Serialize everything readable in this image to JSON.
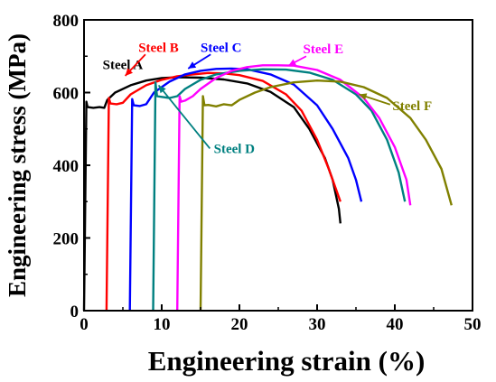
{
  "chart_data": {
    "type": "line",
    "xlabel": "Engineering strain (%)",
    "ylabel": "Engineering stress (MPa)",
    "xlim": [
      0,
      50
    ],
    "ylim": [
      0,
      800
    ],
    "xticks": [
      0,
      10,
      20,
      30,
      40,
      50
    ],
    "yticks": [
      0,
      200,
      400,
      600,
      800
    ],
    "legend": "inline labels",
    "series": [
      {
        "name": "Steel A",
        "color": "#000000",
        "label_anchor": [
          2.4,
          665
        ],
        "points": [
          [
            0,
            0
          ],
          [
            0.3,
            575
          ],
          [
            0.45,
            560
          ],
          [
            1.2,
            558
          ],
          [
            2.0,
            560
          ],
          [
            2.6,
            558
          ],
          [
            3.0,
            580
          ],
          [
            4.0,
            600
          ],
          [
            6.0,
            620
          ],
          [
            8.0,
            633
          ],
          [
            10.0,
            640
          ],
          [
            12.0,
            642
          ],
          [
            15.0,
            641
          ],
          [
            18.0,
            636
          ],
          [
            21.0,
            625
          ],
          [
            24.0,
            602
          ],
          [
            27.0,
            560
          ],
          [
            29.0,
            500
          ],
          [
            31.0,
            420
          ],
          [
            32.0,
            360
          ],
          [
            32.8,
            280
          ],
          [
            33.0,
            240
          ]
        ]
      },
      {
        "name": "Steel B",
        "color": "#ff0000",
        "label_anchor": [
          7.0,
          712
        ],
        "arrow_from": [
          7.9,
          705
        ],
        "arrow_to": [
          5.3,
          646
        ],
        "points": [
          [
            2.9,
            0
          ],
          [
            3.2,
            585
          ],
          [
            3.4,
            570
          ],
          [
            4.2,
            568
          ],
          [
            5.0,
            572
          ],
          [
            6.0,
            595
          ],
          [
            8.0,
            620
          ],
          [
            10.0,
            635
          ],
          [
            12.0,
            645
          ],
          [
            14.0,
            650
          ],
          [
            16.0,
            654
          ],
          [
            18.0,
            653
          ],
          [
            20.0,
            648
          ],
          [
            23.0,
            632
          ],
          [
            26.0,
            595
          ],
          [
            28.0,
            550
          ],
          [
            30.0,
            470
          ],
          [
            31.5,
            390
          ],
          [
            32.5,
            330
          ],
          [
            33.0,
            300
          ]
        ]
      },
      {
        "name": "Steel C",
        "color": "#0000ff",
        "label_anchor": [
          15.0,
          712
        ],
        "arrow_from": [
          16.3,
          705
        ],
        "arrow_to": [
          13.4,
          666
        ],
        "points": [
          [
            5.9,
            0
          ],
          [
            6.2,
            582
          ],
          [
            6.4,
            565
          ],
          [
            7.2,
            563
          ],
          [
            8.0,
            568
          ],
          [
            9.0,
            600
          ],
          [
            11.0,
            630
          ],
          [
            13.0,
            650
          ],
          [
            15.0,
            660
          ],
          [
            17.0,
            665
          ],
          [
            19.0,
            666
          ],
          [
            21.0,
            664
          ],
          [
            24.0,
            650
          ],
          [
            27.0,
            622
          ],
          [
            30.0,
            565
          ],
          [
            32.0,
            500
          ],
          [
            34.0,
            420
          ],
          [
            35.0,
            360
          ],
          [
            35.7,
            300
          ]
        ]
      },
      {
        "name": "Steel D",
        "color": "#008080",
        "label_anchor": [
          16.7,
          433
        ],
        "arrow_from": [
          16.2,
          446
        ],
        "arrow_to": [
          9.6,
          620
        ],
        "points": [
          [
            8.9,
            0
          ],
          [
            9.2,
            628
          ],
          [
            9.4,
            590
          ],
          [
            10.0,
            588
          ],
          [
            11.0,
            585
          ],
          [
            12.0,
            590
          ],
          [
            13.0,
            610
          ],
          [
            15.0,
            635
          ],
          [
            17.0,
            650
          ],
          [
            20.0,
            660
          ],
          [
            23.0,
            664
          ],
          [
            26.0,
            663
          ],
          [
            29.0,
            655
          ],
          [
            32.0,
            635
          ],
          [
            35.0,
            595
          ],
          [
            37.0,
            550
          ],
          [
            39.0,
            470
          ],
          [
            40.5,
            380
          ],
          [
            41.3,
            300
          ]
        ]
      },
      {
        "name": "Steel E",
        "color": "#ff00ff",
        "label_anchor": [
          28.2,
          708
        ],
        "arrow_from": [
          28.6,
          700
        ],
        "arrow_to": [
          26.3,
          674
        ],
        "points": [
          [
            12.0,
            0
          ],
          [
            12.3,
            590
          ],
          [
            12.5,
            575
          ],
          [
            13.0,
            578
          ],
          [
            14.0,
            590
          ],
          [
            15.0,
            610
          ],
          [
            17.0,
            640
          ],
          [
            19.0,
            660
          ],
          [
            21.0,
            670
          ],
          [
            23.0,
            675
          ],
          [
            25.0,
            675
          ],
          [
            27.0,
            674
          ],
          [
            30.0,
            662
          ],
          [
            33.0,
            635
          ],
          [
            36.0,
            585
          ],
          [
            38.0,
            530
          ],
          [
            40.0,
            450
          ],
          [
            41.5,
            360
          ],
          [
            42.0,
            290
          ]
        ]
      },
      {
        "name": "Steel F",
        "color": "#808000",
        "label_anchor": [
          39.7,
          552
        ],
        "arrow_from": [
          39.4,
          567
        ],
        "arrow_to": [
          35.4,
          595
        ],
        "points": [
          [
            15.0,
            0
          ],
          [
            15.3,
            590
          ],
          [
            15.5,
            565
          ],
          [
            16.0,
            566
          ],
          [
            17.0,
            562
          ],
          [
            18.0,
            568
          ],
          [
            19.0,
            565
          ],
          [
            20.0,
            580
          ],
          [
            22.0,
            600
          ],
          [
            24.0,
            615
          ],
          [
            27.0,
            628
          ],
          [
            30.0,
            633
          ],
          [
            33.0,
            630
          ],
          [
            36.0,
            615
          ],
          [
            39.0,
            585
          ],
          [
            42.0,
            530
          ],
          [
            44.0,
            470
          ],
          [
            46.0,
            390
          ],
          [
            47.3,
            290
          ]
        ]
      }
    ]
  }
}
